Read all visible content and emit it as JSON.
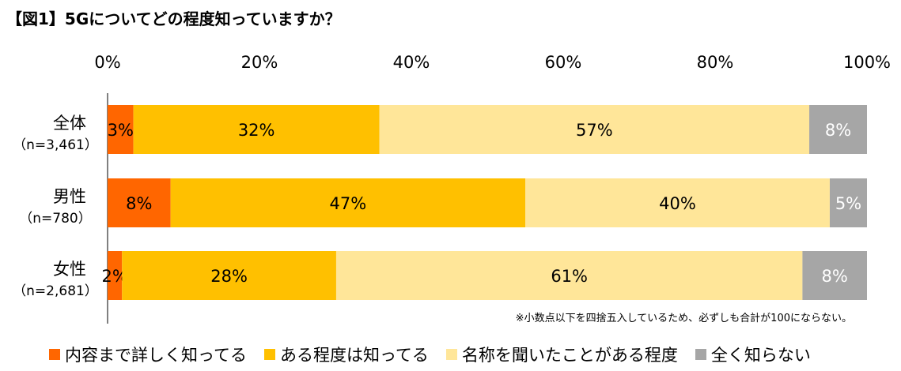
{
  "title": "【図1】5Gについてどの程度知っていますか？",
  "note": "※小数点以下を四捨五入しているため、必ずしも合計が100にならない。",
  "chart_data": {
    "type": "bar",
    "orientation": "horizontal",
    "stacked": true,
    "x_ticks": [
      "0%",
      "20%",
      "40%",
      "60%",
      "80%",
      "100%"
    ],
    "xlim": [
      0,
      100
    ],
    "categories": [
      {
        "name": "全体",
        "n": "（n=3,461）"
      },
      {
        "name": "男性",
        "n": "（n=780）"
      },
      {
        "name": "女性",
        "n": "（n=2,681）"
      }
    ],
    "series": [
      {
        "name": "内容まで詳しく知ってる",
        "color": "#ff6600",
        "label_color": "#000000",
        "values": [
          3,
          8,
          2
        ],
        "values_exact": [
          3.4,
          8.3,
          1.9
        ],
        "labels": [
          "3%",
          "8%",
          "2%"
        ]
      },
      {
        "name": "ある程度は知ってる",
        "color": "#ffc000",
        "label_color": "#000000",
        "values": [
          32,
          47,
          28
        ],
        "values_exact": [
          32.4,
          46.7,
          28.2
        ],
        "labels": [
          "32%",
          "47%",
          "28%"
        ]
      },
      {
        "name": "名称を聞いたことがある程度",
        "color": "#ffe699",
        "label_color": "#000000",
        "values": [
          57,
          40,
          61
        ],
        "values_exact": [
          56.6,
          40.1,
          61.4
        ],
        "labels": [
          "57%",
          "40%",
          "61%"
        ]
      },
      {
        "name": "全く知らない",
        "color": "#a6a6a6",
        "label_color": "#ffffff",
        "values": [
          8,
          5,
          8
        ],
        "values_exact": [
          7.6,
          4.9,
          8.5
        ],
        "labels": [
          "8%",
          "5%",
          "8%"
        ]
      }
    ],
    "legend_position": "bottom",
    "grid": false
  }
}
